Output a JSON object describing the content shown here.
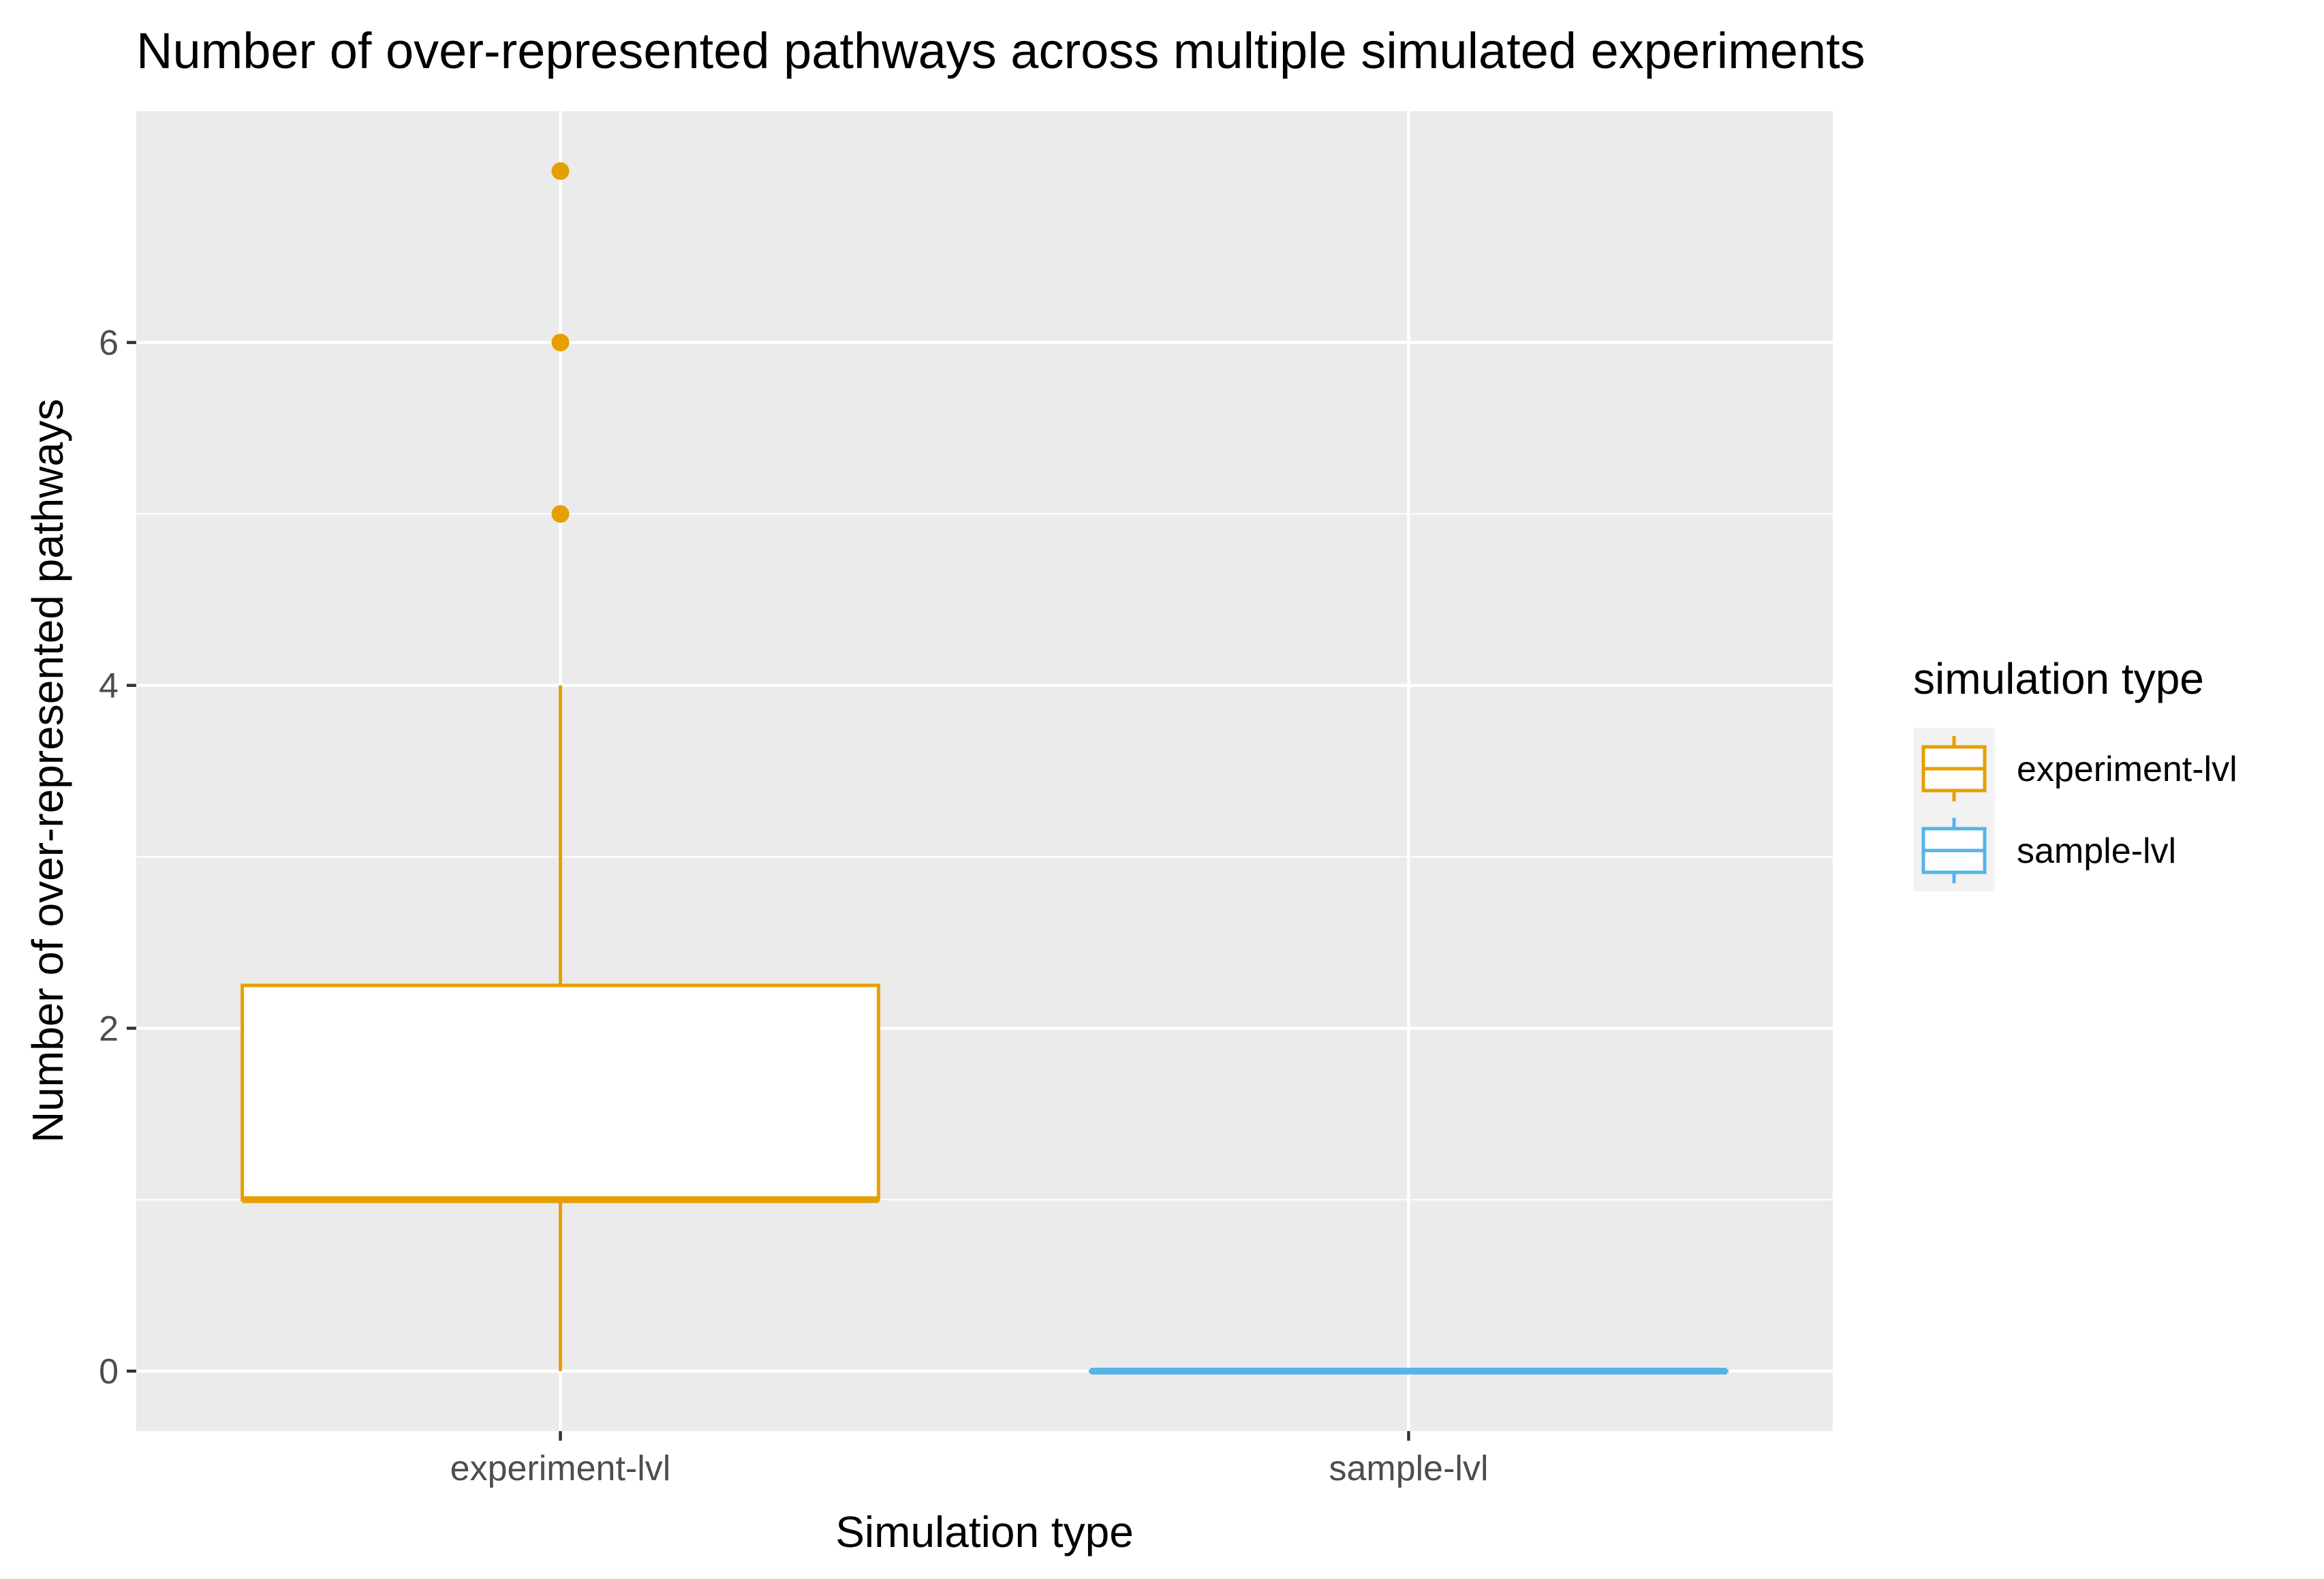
{
  "chart_data": {
    "type": "box",
    "title": "Number of over-represented pathways across multiple simulated experiments",
    "xlabel": "Simulation type",
    "ylabel": "Number of over-represented pathways",
    "categories": [
      "experiment-lvl",
      "sample-lvl"
    ],
    "ylim": [
      -0.35,
      7.35
    ],
    "y_ticks": [
      0,
      2,
      4,
      6
    ],
    "y_tick_labels": [
      "0",
      "2",
      "4",
      "6"
    ],
    "grid": true,
    "background": "#ebebeb",
    "legend": {
      "title": "simulation type",
      "position": "right",
      "entries": [
        {
          "label": "experiment-lvl",
          "color": "#E69F00"
        },
        {
          "label": "sample-lvl",
          "color": "#56B4E9"
        }
      ]
    },
    "series": [
      {
        "name": "experiment-lvl",
        "color": "#E69F00",
        "min": 0,
        "q1": 1,
        "median": 1,
        "q3": 2.25,
        "max": 4,
        "outliers": [
          5,
          6,
          7
        ]
      },
      {
        "name": "sample-lvl",
        "color": "#56B4E9",
        "min": 0,
        "q1": 0,
        "median": 0,
        "q3": 0,
        "max": 0,
        "outliers": []
      }
    ]
  }
}
